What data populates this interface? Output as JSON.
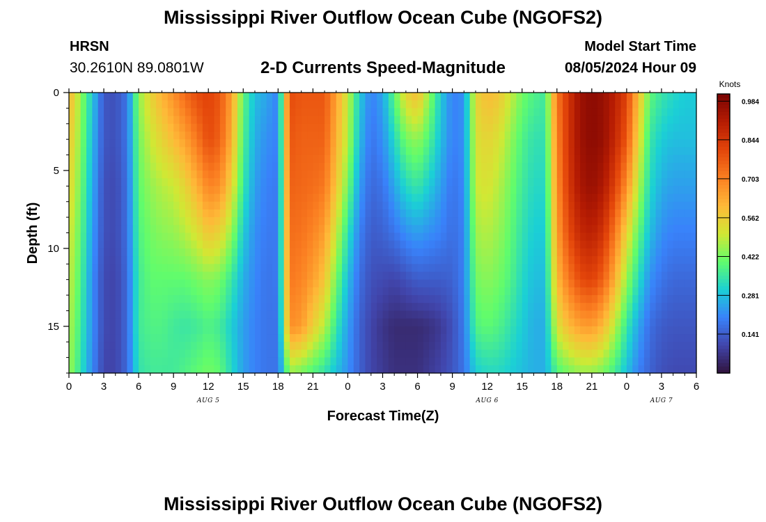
{
  "header": {
    "title": "Mississippi River Outflow Ocean Cube (NGOFS2)",
    "station_code": "HRSN",
    "station_coords": "30.2610N  89.0801W",
    "subtitle": "2-D Currents Speed-Magnitude",
    "model_start_label": "Model Start Time",
    "model_start_value": "08/05/2024 Hour 09"
  },
  "footer": {
    "title": "Mississippi River Outflow Ocean Cube (NGOFS2)"
  },
  "chart_data": {
    "type": "heatmap",
    "title": "2-D Currents Speed-Magnitude",
    "xlabel": "Forecast Time(Z)",
    "ylabel": "Depth (ft)",
    "x_unit": "forecast hours from 08/05/2024 00Z",
    "xlim": [
      0,
      54
    ],
    "ylim": [
      0,
      18
    ],
    "y_inverted": true,
    "x_ticks": [
      0,
      3,
      6,
      9,
      12,
      15,
      18,
      21,
      24,
      27,
      30,
      33,
      36,
      39,
      42,
      45,
      48,
      51,
      54
    ],
    "x_tick_labels": [
      "0",
      "3",
      "6",
      "9",
      "12",
      "15",
      "18",
      "21",
      "0",
      "3",
      "6",
      "9",
      "12",
      "15",
      "18",
      "21",
      "0",
      "3",
      "6"
    ],
    "y_ticks": [
      0,
      5,
      10,
      15
    ],
    "y_tick_labels": [
      "0",
      "5",
      "10",
      "15"
    ],
    "date_labels": [
      {
        "x": 12,
        "text": "AUG 5"
      },
      {
        "x": 36,
        "text": "AUG 6"
      },
      {
        "x": 51,
        "text": "AUG 7"
      }
    ],
    "colorbar": {
      "label": "Knots",
      "min": 0.0,
      "max": 1.01,
      "ticks": [
        0.141,
        0.281,
        0.422,
        0.562,
        0.703,
        0.844,
        0.984
      ],
      "tick_labels": [
        "0.141",
        "0.281",
        "0.422",
        "0.562",
        "0.703",
        "0.844",
        "0.984"
      ]
    },
    "time_hours": [
      0,
      1,
      2,
      3,
      4,
      5,
      6,
      7,
      8,
      9,
      10,
      11,
      12,
      13,
      14,
      15,
      16,
      17,
      18,
      19,
      20,
      21,
      22,
      23,
      24,
      25,
      26,
      27,
      28,
      29,
      30,
      31,
      32,
      33,
      34,
      35,
      36,
      37,
      38,
      39,
      40,
      41,
      42,
      43,
      44,
      45,
      46,
      47,
      48,
      49,
      50,
      51,
      52,
      53,
      54
    ],
    "depth_ft": [
      0,
      3,
      6,
      9,
      12,
      15,
      18
    ],
    "series": [
      {
        "name": "depth 0 ft",
        "values": [
          0.62,
          0.45,
          0.3,
          0.13,
          0.12,
          0.18,
          0.45,
          0.55,
          0.62,
          0.68,
          0.75,
          0.8,
          0.82,
          0.78,
          0.65,
          0.4,
          0.28,
          0.25,
          0.2,
          0.8,
          0.78,
          0.78,
          0.78,
          0.65,
          0.5,
          0.3,
          0.2,
          0.25,
          0.4,
          0.55,
          0.6,
          0.45,
          0.3,
          0.2,
          0.22,
          0.55,
          0.6,
          0.58,
          0.5,
          0.42,
          0.38,
          0.36,
          0.72,
          0.85,
          0.95,
          0.98,
          0.96,
          0.9,
          0.82,
          0.6,
          0.4,
          0.35,
          0.32,
          0.3,
          0.3
        ]
      },
      {
        "name": "depth 3 ft",
        "values": [
          0.58,
          0.44,
          0.28,
          0.13,
          0.12,
          0.18,
          0.42,
          0.5,
          0.55,
          0.6,
          0.65,
          0.72,
          0.8,
          0.76,
          0.62,
          0.38,
          0.26,
          0.22,
          0.2,
          0.78,
          0.76,
          0.76,
          0.76,
          0.62,
          0.48,
          0.28,
          0.18,
          0.22,
          0.32,
          0.42,
          0.45,
          0.38,
          0.28,
          0.2,
          0.22,
          0.52,
          0.55,
          0.52,
          0.45,
          0.38,
          0.34,
          0.34,
          0.7,
          0.85,
          0.95,
          0.98,
          0.96,
          0.88,
          0.78,
          0.55,
          0.35,
          0.3,
          0.28,
          0.28,
          0.28
        ]
      },
      {
        "name": "depth 6 ft",
        "values": [
          0.55,
          0.42,
          0.26,
          0.12,
          0.11,
          0.17,
          0.4,
          0.45,
          0.48,
          0.5,
          0.55,
          0.62,
          0.7,
          0.68,
          0.55,
          0.35,
          0.24,
          0.2,
          0.19,
          0.76,
          0.75,
          0.74,
          0.72,
          0.58,
          0.42,
          0.24,
          0.16,
          0.18,
          0.25,
          0.32,
          0.35,
          0.3,
          0.24,
          0.18,
          0.21,
          0.5,
          0.52,
          0.48,
          0.42,
          0.36,
          0.32,
          0.32,
          0.68,
          0.84,
          0.93,
          0.96,
          0.92,
          0.82,
          0.68,
          0.48,
          0.32,
          0.26,
          0.24,
          0.24,
          0.24
        ]
      },
      {
        "name": "depth 9 ft",
        "values": [
          0.52,
          0.4,
          0.24,
          0.12,
          0.11,
          0.17,
          0.38,
          0.42,
          0.44,
          0.45,
          0.48,
          0.52,
          0.58,
          0.55,
          0.45,
          0.3,
          0.22,
          0.19,
          0.19,
          0.74,
          0.73,
          0.7,
          0.65,
          0.5,
          0.34,
          0.2,
          0.14,
          0.15,
          0.18,
          0.22,
          0.24,
          0.22,
          0.2,
          0.17,
          0.2,
          0.46,
          0.48,
          0.45,
          0.4,
          0.34,
          0.3,
          0.3,
          0.65,
          0.8,
          0.88,
          0.9,
          0.85,
          0.72,
          0.55,
          0.4,
          0.28,
          0.22,
          0.2,
          0.2,
          0.2
        ]
      },
      {
        "name": "depth 12 ft",
        "values": [
          0.5,
          0.38,
          0.22,
          0.11,
          0.1,
          0.16,
          0.36,
          0.4,
          0.4,
          0.4,
          0.4,
          0.42,
          0.44,
          0.42,
          0.35,
          0.26,
          0.21,
          0.18,
          0.19,
          0.72,
          0.7,
          0.65,
          0.58,
          0.42,
          0.28,
          0.17,
          0.12,
          0.11,
          0.1,
          0.12,
          0.14,
          0.14,
          0.14,
          0.15,
          0.2,
          0.42,
          0.44,
          0.42,
          0.38,
          0.32,
          0.28,
          0.28,
          0.6,
          0.72,
          0.8,
          0.82,
          0.76,
          0.62,
          0.45,
          0.33,
          0.22,
          0.18,
          0.16,
          0.16,
          0.16
        ]
      },
      {
        "name": "depth 15 ft",
        "values": [
          0.48,
          0.36,
          0.22,
          0.11,
          0.1,
          0.16,
          0.36,
          0.38,
          0.38,
          0.36,
          0.35,
          0.36,
          0.38,
          0.36,
          0.3,
          0.24,
          0.2,
          0.18,
          0.18,
          0.68,
          0.66,
          0.56,
          0.48,
          0.35,
          0.24,
          0.15,
          0.1,
          0.07,
          0.05,
          0.05,
          0.05,
          0.06,
          0.08,
          0.12,
          0.19,
          0.38,
          0.4,
          0.38,
          0.34,
          0.3,
          0.26,
          0.26,
          0.52,
          0.6,
          0.65,
          0.66,
          0.6,
          0.48,
          0.35,
          0.25,
          0.17,
          0.14,
          0.13,
          0.13,
          0.13
        ]
      },
      {
        "name": "depth 18 ft",
        "values": [
          0.46,
          0.34,
          0.21,
          0.1,
          0.1,
          0.16,
          0.34,
          0.36,
          0.36,
          0.36,
          0.38,
          0.4,
          0.42,
          0.4,
          0.32,
          0.24,
          0.2,
          0.18,
          0.18,
          0.45,
          0.42,
          0.38,
          0.34,
          0.28,
          0.22,
          0.15,
          0.1,
          0.08,
          0.06,
          0.06,
          0.06,
          0.08,
          0.1,
          0.13,
          0.18,
          0.3,
          0.32,
          0.32,
          0.3,
          0.28,
          0.26,
          0.26,
          0.38,
          0.42,
          0.45,
          0.45,
          0.42,
          0.36,
          0.28,
          0.2,
          0.15,
          0.12,
          0.11,
          0.11,
          0.11
        ]
      }
    ]
  }
}
